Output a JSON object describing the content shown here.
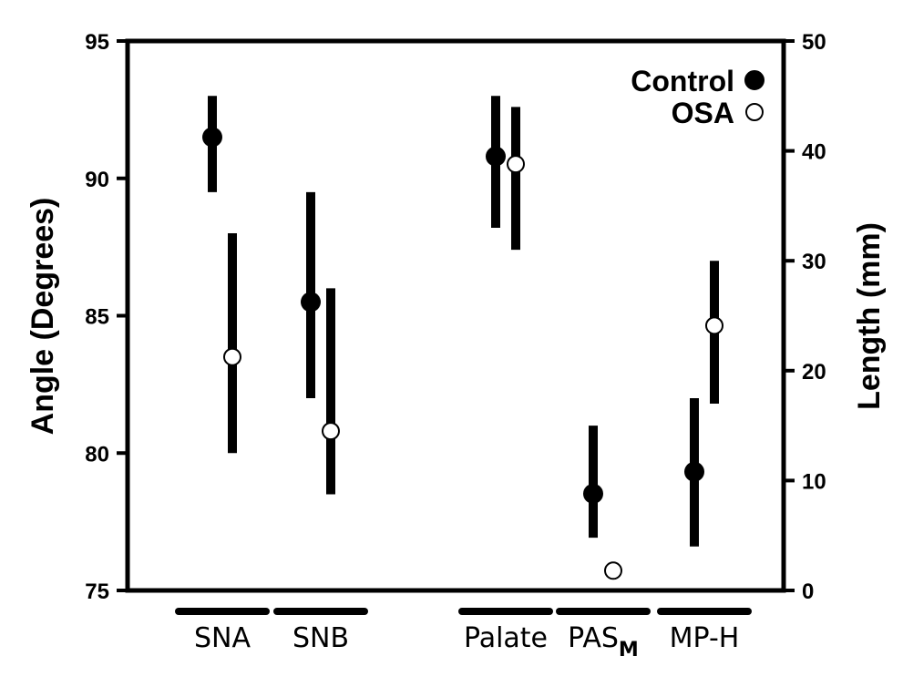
{
  "chart_data": {
    "type": "scatter",
    "title": "",
    "left_axis": {
      "label": "Angle (Degrees)",
      "range": [
        75,
        95
      ],
      "ticks": [
        75,
        80,
        85,
        90,
        95
      ]
    },
    "right_axis": {
      "label": "Length (mm)",
      "range": [
        0,
        50
      ],
      "ticks": [
        0,
        10,
        20,
        30,
        40,
        50
      ]
    },
    "group_labels": [
      {
        "text": "SNA",
        "sub": ""
      },
      {
        "text": "SNB",
        "sub": ""
      },
      {
        "text": "Palate",
        "sub": ""
      },
      {
        "text": "PAS",
        "sub": "M"
      },
      {
        "text": "MP-H",
        "sub": ""
      }
    ],
    "legend": {
      "placement": "top-right",
      "entries": [
        {
          "name": "Control",
          "marker": "filled-circle"
        },
        {
          "name": "OSA",
          "marker": "open-circle"
        }
      ]
    },
    "series": [
      {
        "name": "Control",
        "marker": "filled",
        "points": [
          {
            "category": "SNA",
            "axis": "left",
            "value": 91.5,
            "low": 89.5,
            "high": 93.0
          },
          {
            "category": "SNB",
            "axis": "left",
            "value": 85.5,
            "low": 82.0,
            "high": 89.5
          },
          {
            "category": "Palate",
            "axis": "right",
            "value": 39.5,
            "low": 33.0,
            "high": 45.0
          },
          {
            "category": "PAS_M",
            "axis": "right",
            "value": 8.8,
            "low": 4.8,
            "high": 15.0
          },
          {
            "category": "MP-H",
            "axis": "right",
            "value": 10.8,
            "low": 4.0,
            "high": 17.5
          }
        ]
      },
      {
        "name": "OSA",
        "marker": "open",
        "points": [
          {
            "category": "SNA",
            "axis": "left",
            "value": 83.5,
            "low": 80.0,
            "high": 88.0
          },
          {
            "category": "SNB",
            "axis": "left",
            "value": 80.8,
            "low": 78.5,
            "high": 86.0
          },
          {
            "category": "Palate",
            "axis": "right",
            "value": 38.8,
            "low": 31.0,
            "high": 44.0
          },
          {
            "category": "PAS_M",
            "axis": "right",
            "value": 1.8,
            "low": null,
            "high": null
          },
          {
            "category": "MP-H",
            "axis": "right",
            "value": 24.1,
            "low": 17.0,
            "high": 30.0
          }
        ]
      }
    ]
  }
}
